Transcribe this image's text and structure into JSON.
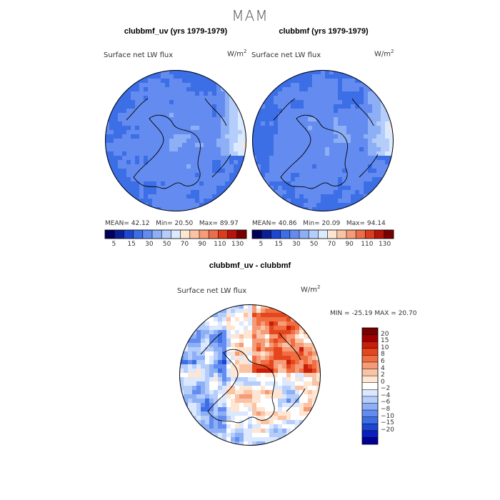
{
  "season": "MAM",
  "panels": [
    {
      "title": "clubbmf_uv (yrs 1979-1979)",
      "variable": "Surface net LW flux",
      "units_base": "W/m",
      "units_exp": "2",
      "stats": {
        "mean_label": "MEAN=",
        "mean": "42.12",
        "min_label": "Min=",
        "min": "20.50",
        "max_label": "Max=",
        "max": "89.97"
      }
    },
    {
      "title": "clubbmf (yrs 1979-1979)",
      "variable": "Surface net LW flux",
      "units_base": "W/m",
      "units_exp": "2",
      "stats": {
        "mean_label": "MEAN=",
        "mean": "40.86",
        "min_label": "Min=",
        "min": "20.09",
        "max_label": "Max=",
        "max": "94.14"
      }
    }
  ],
  "diff_panel": {
    "title": "clubbmf_uv - clubbmf",
    "variable": "Surface net LW flux",
    "units_base": "W/m",
    "units_exp": "2",
    "stats": {
      "min_label": "MIN =",
      "min": "-25.19",
      "max_label": "MAX =",
      "max": "20.70"
    }
  },
  "colorbar_main": {
    "colors": [
      "#00005a",
      "#0a1e96",
      "#1e46d2",
      "#3c6ee6",
      "#648cf0",
      "#8caff5",
      "#b4cdfa",
      "#dceaff",
      "#ffe6d2",
      "#fac3a5",
      "#f59b78",
      "#eb6e4b",
      "#dc3c1e",
      "#b4140a",
      "#780000"
    ],
    "tick_labels": [
      "5",
      "15",
      "30",
      "50",
      "70",
      "90",
      "110",
      "130"
    ]
  },
  "colorbar_diff": {
    "colors": [
      "#780000",
      "#a00000",
      "#c81e0a",
      "#e6461e",
      "#f06e41",
      "#f59b78",
      "#fac3a5",
      "#ffe6d2",
      "#ffffff",
      "#dce8ff",
      "#b4cdfa",
      "#8caff5",
      "#648cf0",
      "#3c6ee6",
      "#1e46d2",
      "#0a1ebe",
      "#000096"
    ],
    "tick_labels": [
      "20",
      "15",
      "10",
      "8",
      "6",
      "4",
      "2",
      "0",
      "−2",
      "−4",
      "−6",
      "−8",
      "−10",
      "−15",
      "−20"
    ]
  }
}
